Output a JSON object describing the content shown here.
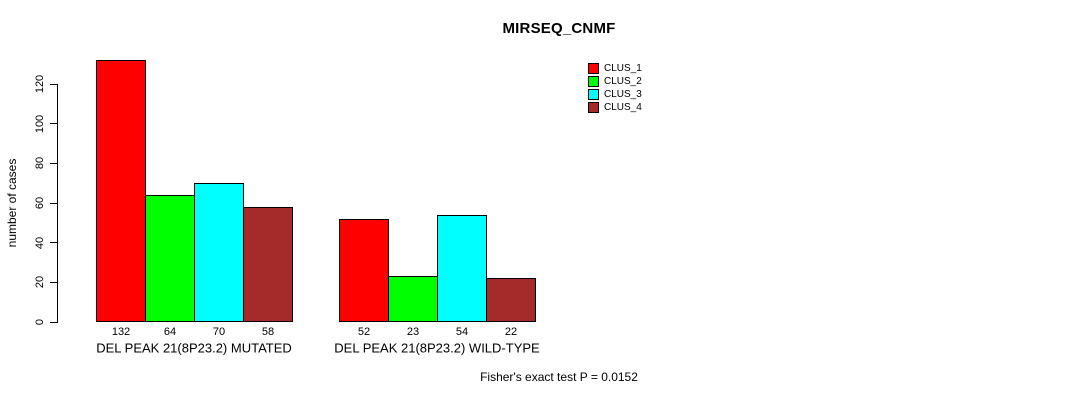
{
  "chart_data": {
    "type": "bar",
    "title": "MIRSEQ_CNMF",
    "ylabel": "number of cases",
    "xlabel": "",
    "ylim": [
      0,
      140
    ],
    "yticks": [
      0,
      20,
      40,
      60,
      80,
      100,
      120
    ],
    "grid": false,
    "legend_position": "top-right",
    "categories": [
      "DEL PEAK 21(8P23.2) MUTATED",
      "DEL PEAK 21(8P23.2) WILD-TYPE"
    ],
    "series": [
      {
        "name": "CLUS_1",
        "color": "#FF0000",
        "values": [
          132,
          52
        ]
      },
      {
        "name": "CLUS_2",
        "color": "#00FF00",
        "values": [
          64,
          23
        ]
      },
      {
        "name": "CLUS_3",
        "color": "#00FFFF",
        "values": [
          70,
          54
        ]
      },
      {
        "name": "CLUS_4",
        "color": "#A52A2A",
        "values": [
          58,
          22
        ]
      }
    ],
    "bar_value_labels": [
      [
        132,
        64,
        70,
        58
      ],
      [
        52,
        23,
        54,
        22
      ]
    ],
    "annotation": "Fisher's exact test P = 0.0152"
  },
  "colors": {
    "background": "#FFFFFF",
    "axis": "#000000",
    "text": "#000000"
  }
}
